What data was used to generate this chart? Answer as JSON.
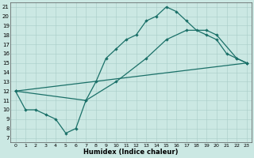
{
  "xlabel": "Humidex (Indice chaleur)",
  "bg_color": "#cbe8e3",
  "line_color": "#1a7068",
  "xlim": [
    -0.5,
    23.5
  ],
  "ylim": [
    6.5,
    21.5
  ],
  "xticks": [
    0,
    1,
    2,
    3,
    4,
    5,
    6,
    7,
    8,
    9,
    10,
    11,
    12,
    13,
    14,
    15,
    16,
    17,
    18,
    19,
    20,
    21,
    22,
    23
  ],
  "yticks": [
    7,
    8,
    9,
    10,
    11,
    12,
    13,
    14,
    15,
    16,
    17,
    18,
    19,
    20,
    21
  ],
  "line1_x": [
    0,
    1,
    2,
    3,
    4,
    5,
    6,
    7,
    8,
    9,
    10,
    11,
    12,
    13,
    14,
    15,
    16,
    17,
    18,
    19,
    20,
    21,
    22,
    23
  ],
  "line1_y": [
    12.0,
    10.0,
    10.0,
    9.5,
    9.0,
    7.5,
    8.0,
    11.0,
    13.0,
    15.5,
    16.5,
    17.5,
    18.0,
    19.5,
    20.0,
    21.0,
    20.5,
    19.5,
    18.5,
    18.0,
    17.5,
    16.0,
    15.5,
    15.0
  ],
  "line2_x": [
    0,
    7,
    10,
    13,
    15,
    17,
    19,
    20,
    22,
    23
  ],
  "line2_y": [
    12.0,
    11.0,
    13.0,
    15.5,
    17.5,
    18.5,
    18.5,
    18.0,
    15.5,
    15.0
  ],
  "line3_x": [
    0,
    23
  ],
  "line3_y": [
    12.0,
    15.0
  ]
}
